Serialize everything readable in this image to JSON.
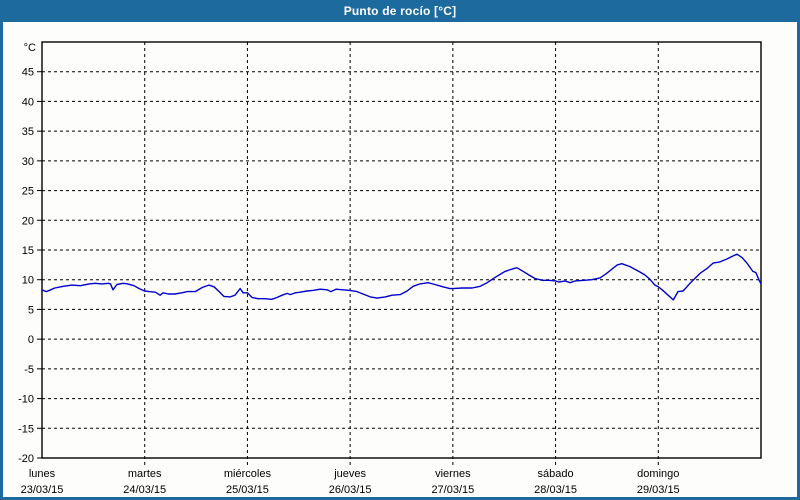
{
  "window": {
    "title": "Punto de rocío [°C]"
  },
  "colors": {
    "frame_blue": "#1d6a9e",
    "panel_bg": "#fdfdfb",
    "plot_border": "#000000",
    "grid": "#000000",
    "series_line": "#0000cc",
    "title_text": "#ffffff",
    "axis_text": "#000000"
  },
  "chart_data": {
    "type": "line",
    "title": "Punto de rocío [°C]",
    "ylabel": "°C",
    "y_min": -20,
    "y_max": 50,
    "y_ticks": [
      45,
      40,
      35,
      30,
      25,
      20,
      15,
      10,
      5,
      0,
      -5,
      -10,
      -15,
      -20
    ],
    "grid_style": "dashed",
    "legend": "none",
    "x_hours_total": 168,
    "x_day_starts_hours": [
      0,
      24,
      48,
      72,
      96,
      120,
      144
    ],
    "x_day_labels": [
      {
        "name": "lunes",
        "date": "23/03/15"
      },
      {
        "name": "martes",
        "date": "24/03/15"
      },
      {
        "name": "miércoles",
        "date": "25/03/15"
      },
      {
        "name": "jueves",
        "date": "26/03/15"
      },
      {
        "name": "viernes",
        "date": "27/03/15"
      },
      {
        "name": "sábado",
        "date": "28/03/15"
      },
      {
        "name": "domingo",
        "date": "29/03/15"
      }
    ],
    "series": [
      {
        "name": "Punto de rocío",
        "color": "#0000cc",
        "points": [
          [
            0,
            8.3
          ],
          [
            1,
            8.0
          ],
          [
            2,
            8.3
          ],
          [
            3,
            8.6
          ],
          [
            5,
            8.9
          ],
          [
            7,
            9.1
          ],
          [
            9,
            9.0
          ],
          [
            11,
            9.3
          ],
          [
            12.5,
            9.4
          ],
          [
            14,
            9.3
          ],
          [
            15.5,
            9.4
          ],
          [
            16,
            9.3
          ],
          [
            16.6,
            8.3
          ],
          [
            17.5,
            9.2
          ],
          [
            19,
            9.4
          ],
          [
            20,
            9.3
          ],
          [
            21.5,
            9.0
          ],
          [
            22.7,
            8.5
          ],
          [
            24,
            8.1
          ],
          [
            25,
            8.0
          ],
          [
            26.5,
            7.9
          ],
          [
            27.6,
            7.4
          ],
          [
            28.3,
            7.8
          ],
          [
            29.5,
            7.6
          ],
          [
            31,
            7.6
          ],
          [
            32.7,
            7.8
          ],
          [
            34,
            8.0
          ],
          [
            35.8,
            8.0
          ],
          [
            37.5,
            8.7
          ],
          [
            39,
            9.1
          ],
          [
            40.2,
            8.8
          ],
          [
            41.4,
            8.0
          ],
          [
            42.5,
            7.2
          ],
          [
            44,
            7.1
          ],
          [
            45.1,
            7.4
          ],
          [
            46.3,
            8.5
          ],
          [
            47,
            7.8
          ],
          [
            48,
            7.8
          ],
          [
            49.1,
            7.0
          ],
          [
            50.5,
            6.8
          ],
          [
            52,
            6.8
          ],
          [
            53.7,
            6.7
          ],
          [
            54.9,
            7.0
          ],
          [
            56.1,
            7.4
          ],
          [
            57.3,
            7.7
          ],
          [
            58,
            7.5
          ],
          [
            59.2,
            7.8
          ],
          [
            60.3,
            7.9
          ],
          [
            61.9,
            8.1
          ],
          [
            63.3,
            8.2
          ],
          [
            65,
            8.4
          ],
          [
            66.6,
            8.3
          ],
          [
            67.5,
            8.0
          ],
          [
            68.7,
            8.4
          ],
          [
            70.3,
            8.3
          ],
          [
            72,
            8.2
          ],
          [
            73.6,
            8.0
          ],
          [
            75,
            7.6
          ],
          [
            76.7,
            7.1
          ],
          [
            78.3,
            6.9
          ],
          [
            80.2,
            7.1
          ],
          [
            81.8,
            7.4
          ],
          [
            83.7,
            7.5
          ],
          [
            85.3,
            8.1
          ],
          [
            86.7,
            8.9
          ],
          [
            88.3,
            9.3
          ],
          [
            90.2,
            9.5
          ],
          [
            91.8,
            9.2
          ],
          [
            93.7,
            8.8
          ],
          [
            95.3,
            8.5
          ],
          [
            96,
            8.5
          ],
          [
            98.2,
            8.6
          ],
          [
            100.5,
            8.6
          ],
          [
            102.4,
            8.9
          ],
          [
            104,
            9.5
          ],
          [
            105.9,
            10.4
          ],
          [
            108.2,
            11.4
          ],
          [
            110.3,
            11.9
          ],
          [
            111,
            12.0
          ],
          [
            112.2,
            11.5
          ],
          [
            113.8,
            10.8
          ],
          [
            115.2,
            10.2
          ],
          [
            116.9,
            9.9
          ],
          [
            118.5,
            9.9
          ],
          [
            120,
            9.8
          ],
          [
            120.8,
            9.6
          ],
          [
            122.2,
            9.8
          ],
          [
            123.4,
            9.5
          ],
          [
            124.6,
            9.8
          ],
          [
            126.7,
            9.9
          ],
          [
            128.5,
            10.0
          ],
          [
            130.4,
            10.3
          ],
          [
            132,
            11.1
          ],
          [
            133.2,
            11.8
          ],
          [
            134.4,
            12.5
          ],
          [
            135.5,
            12.7
          ],
          [
            137.4,
            12.2
          ],
          [
            139.7,
            11.3
          ],
          [
            140.9,
            10.8
          ],
          [
            142,
            10.1
          ],
          [
            143.2,
            9.1
          ],
          [
            144,
            8.8
          ],
          [
            144.9,
            8.3
          ],
          [
            146.3,
            7.4
          ],
          [
            147.5,
            6.6
          ],
          [
            148.6,
            8.0
          ],
          [
            149.8,
            8.1
          ],
          [
            151.4,
            9.4
          ],
          [
            153.8,
            11.1
          ],
          [
            155.4,
            11.9
          ],
          [
            156.8,
            12.8
          ],
          [
            158.4,
            13.0
          ],
          [
            160.1,
            13.5
          ],
          [
            161.5,
            14.0
          ],
          [
            162.4,
            14.3
          ],
          [
            163.6,
            13.7
          ],
          [
            164.7,
            12.8
          ],
          [
            166.1,
            11.4
          ],
          [
            166.8,
            11.2
          ],
          [
            167.5,
            10.0
          ],
          [
            168,
            9.3
          ]
        ]
      }
    ]
  }
}
